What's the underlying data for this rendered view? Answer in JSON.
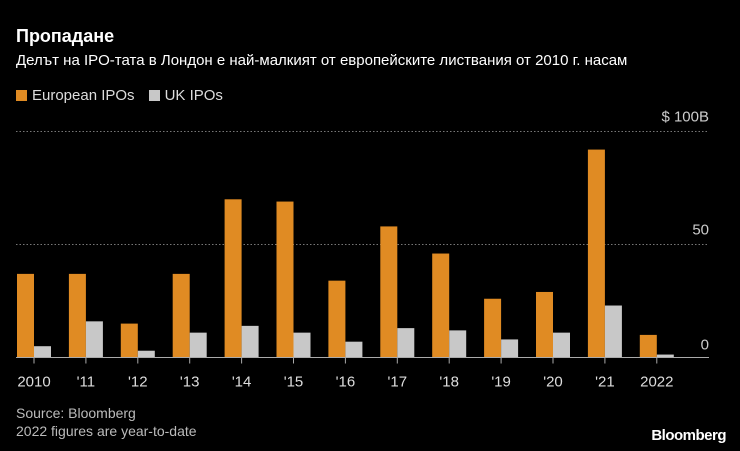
{
  "title": "Пропадане",
  "subtitle": "Делът на IPO-тата в Лондон е най-малкият от европейските листвания от 2010 г. насам",
  "source": "Source: Bloomberg",
  "note": "2022 figures are year-to-date",
  "logo": "Bloomberg",
  "chart_data": {
    "type": "bar",
    "categories": [
      "2010",
      "'11",
      "'12",
      "'13",
      "'14",
      "'15",
      "'16",
      "'17",
      "'18",
      "'19",
      "'20",
      "'21",
      "2022"
    ],
    "series": [
      {
        "name": "European IPOs",
        "color": "#e08b23",
        "values": [
          37,
          37,
          15,
          37,
          70,
          69,
          34,
          58,
          46,
          26,
          29,
          92,
          10
        ]
      },
      {
        "name": "UK IPOs",
        "color": "#c8c8c8",
        "values": [
          5,
          16,
          3,
          11,
          14,
          11,
          7,
          13,
          12,
          8,
          11,
          23,
          1.3
        ]
      }
    ],
    "yticks": [
      "0",
      "50",
      "$ 100B"
    ],
    "ylim": [
      0,
      100
    ],
    "grid": true,
    "legend": "top-left"
  }
}
